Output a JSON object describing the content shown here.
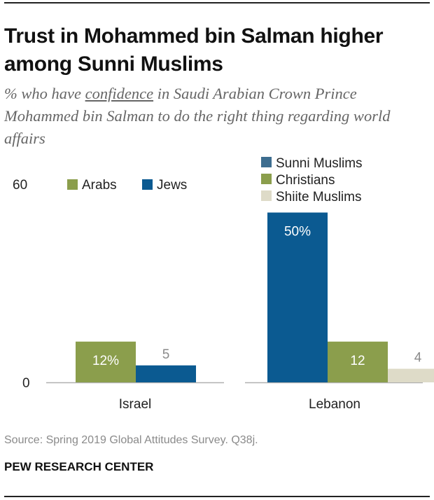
{
  "title": "Trust in Mohammed bin Salman higher among Sunni Muslims",
  "subtitle": {
    "before": "% who have ",
    "underlined": "confidence",
    "after": " in Saudi Arabian Crown Prince Mohammed bin Salman to do the right thing regarding world affairs"
  },
  "source": "Source: Spring 2019 Global Attitudes Survey. Q38j.",
  "credit": "PEW RESEARCH CENTER",
  "colors": {
    "dark_blue": "#0b5a91",
    "green": "#8b9e4c",
    "beige": "#dedbc8",
    "slate": "#3d6d8f",
    "axis": "#b0b0b0",
    "label_gray": "#8a8a8a"
  },
  "chart_data": [
    {
      "type": "bar",
      "category": "Israel",
      "ylim": [
        0,
        60
      ],
      "yticks": [
        "60",
        "0"
      ],
      "legend": [
        {
          "name": "Arabs",
          "color": "#8b9e4c"
        },
        {
          "name": "Jews",
          "color": "#0b5a91"
        }
      ],
      "bars": [
        {
          "series": "Arabs",
          "value": 12,
          "label": "12%",
          "color": "#8b9e4c",
          "label_inside": true
        },
        {
          "series": "Jews",
          "value": 5,
          "label": "5",
          "color": "#0b5a91",
          "label_inside": false
        }
      ]
    },
    {
      "type": "bar",
      "category": "Lebanon",
      "ylim": [
        0,
        60
      ],
      "legend": [
        {
          "name": "Sunni Muslims",
          "color": "#3d6d8f"
        },
        {
          "name": "Christians",
          "color": "#8b9e4c"
        },
        {
          "name": "Shiite Muslims",
          "color": "#dedbc8"
        }
      ],
      "bars": [
        {
          "series": "Sunni Muslims",
          "value": 50,
          "label": "50%",
          "color": "#0b5a91",
          "label_inside": true
        },
        {
          "series": "Christians",
          "value": 12,
          "label": "12",
          "color": "#8b9e4c",
          "label_inside": true
        },
        {
          "series": "Shiite Muslims",
          "value": 4,
          "label": "4",
          "color": "#dedbc8",
          "label_inside": false
        }
      ]
    }
  ]
}
